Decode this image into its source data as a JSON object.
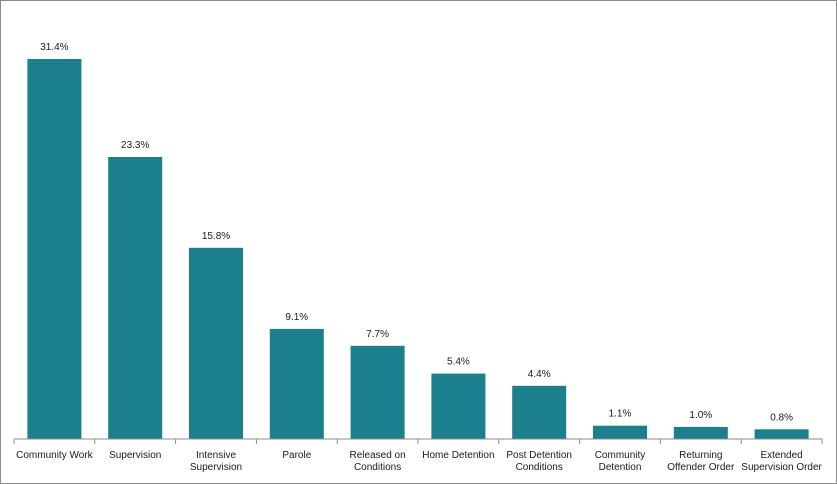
{
  "chart_data": {
    "type": "bar",
    "categories": [
      [
        "Community Work"
      ],
      [
        "Supervision"
      ],
      [
        "Intensive",
        "Supervision"
      ],
      [
        "Parole"
      ],
      [
        "Released on",
        "Conditions"
      ],
      [
        "Home Detention"
      ],
      [
        "Post Detention",
        "Conditions"
      ],
      [
        "Community",
        "Detention"
      ],
      [
        "Returning",
        "Offender Order"
      ],
      [
        "Extended",
        "Supervision Order"
      ]
    ],
    "values": [
      31.4,
      23.3,
      15.8,
      9.1,
      7.7,
      5.4,
      4.4,
      1.1,
      1.0,
      0.8
    ],
    "value_labels": [
      "31.4%",
      "23.3%",
      "15.8%",
      "9.1%",
      "7.7%",
      "5.4%",
      "4.4%",
      "1.1%",
      "1.0%",
      "0.8%"
    ],
    "title": "",
    "xlabel": "",
    "ylabel": "",
    "ylim": [
      0,
      31.4
    ],
    "grid": false,
    "legend": "none",
    "bar_color": "#1b7f8e",
    "axis_color": "#8c8c8c"
  }
}
